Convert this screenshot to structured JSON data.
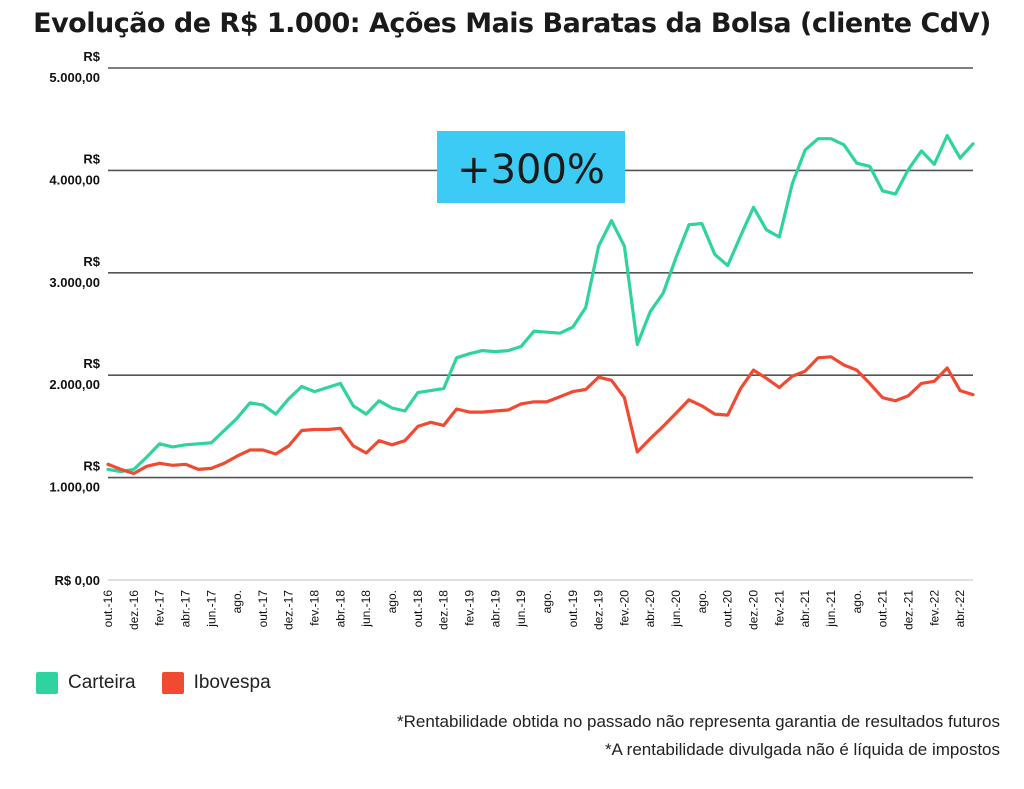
{
  "chart_data": {
    "type": "line",
    "title": "Evolução de R$ 1.000: Ações Mais Baratas da Bolsa (cliente CdV)",
    "ylim": [
      0,
      5000
    ],
    "y_ticks": [
      {
        "value": 0,
        "label": "R$ 0,00"
      },
      {
        "value": 1000,
        "label": "R$\n1.000,00"
      },
      {
        "value": 2000,
        "label": "R$\n2.000,00"
      },
      {
        "value": 3000,
        "label": "R$\n3.000,00"
      },
      {
        "value": 4000,
        "label": "R$\n4.000,00"
      },
      {
        "value": 5000,
        "label": "R$\n5.000,00"
      }
    ],
    "x": [
      "out.-16",
      "nov.-16",
      "dez.-16",
      "jan.-17",
      "fev.-17",
      "mar.-17",
      "abr.-17",
      "mai.-17",
      "jun.-17",
      "jul.-17",
      "ago.-17",
      "set.-17",
      "out.-17",
      "nov.-17",
      "dez.-17",
      "jan.-18",
      "fev.-18",
      "mar.-18",
      "abr.-18",
      "mai.-18",
      "jun.-18",
      "jul.-18",
      "ago.-18",
      "set.-18",
      "out.-18",
      "nov.-18",
      "dez.-18",
      "jan.-19",
      "fev.-19",
      "mar.-19",
      "abr.-19",
      "mai.-19",
      "jun.-19",
      "jul.-19",
      "ago.-19",
      "set.-19",
      "out.-19",
      "nov.-19",
      "dez.-19",
      "jan.-20",
      "fev.-20",
      "mar.-20",
      "abr.-20",
      "mai.-20",
      "jun.-20",
      "jul.-20",
      "ago.-20",
      "set.-20",
      "out.-20",
      "nov.-20",
      "dez.-20",
      "jan.-21",
      "fev.-21",
      "mar.-21",
      "abr.-21",
      "mai.-21",
      "jun.-21",
      "jul.-21",
      "ago.-21",
      "set.-21",
      "out.-21",
      "nov.-21",
      "dez.-21",
      "jan.-22",
      "fev.-22",
      "mar.-22",
      "abr.-22",
      "mai.-22"
    ],
    "x_tick_labels": [
      "out.-16",
      "dez.-16",
      "fev.-17",
      "abr.-17",
      "jun.-17",
      "ago.",
      "out.-17",
      "dez.-17",
      "fev.-18",
      "abr.-18",
      "jun.-18",
      "ago.",
      "out.-18",
      "dez.-18",
      "fev.-19",
      "abr.-19",
      "jun.-19",
      "ago.",
      "out.-19",
      "dez.-19",
      "fev.-20",
      "abr.-20",
      "jun.-20",
      "ago.",
      "out.-20",
      "dez.-20",
      "fev.-21",
      "abr.-21",
      "jun.-21",
      "ago.",
      "out.-21",
      "dez.-21",
      "fev.-22",
      "abr.-22"
    ],
    "series": [
      {
        "name": "Carteira",
        "color": "#2ed3a0",
        "values": [
          1080,
          1060,
          1080,
          1200,
          1330,
          1300,
          1320,
          1330,
          1340,
          1460,
          1580,
          1730,
          1710,
          1620,
          1770,
          1890,
          1840,
          1880,
          1920,
          1700,
          1620,
          1750,
          1680,
          1650,
          1830,
          1850,
          1870,
          2170,
          2210,
          2240,
          2230,
          2240,
          2280,
          2430,
          2420,
          2410,
          2470,
          2660,
          3260,
          3510,
          3260,
          2300,
          2620,
          2800,
          3150,
          3470,
          3480,
          3180,
          3070,
          3360,
          3640,
          3420,
          3350,
          3870,
          4200,
          4310,
          4310,
          4250,
          4070,
          4040,
          3800,
          3770,
          4010,
          4190,
          4060,
          4340,
          4120,
          4260
        ]
      },
      {
        "name": "Ibovespa",
        "color": "#f04a32",
        "values": [
          1130,
          1080,
          1040,
          1110,
          1140,
          1120,
          1130,
          1080,
          1090,
          1140,
          1210,
          1270,
          1270,
          1230,
          1310,
          1460,
          1470,
          1470,
          1480,
          1310,
          1240,
          1360,
          1320,
          1360,
          1500,
          1540,
          1510,
          1670,
          1640,
          1640,
          1650,
          1660,
          1720,
          1740,
          1740,
          1790,
          1840,
          1860,
          1980,
          1950,
          1780,
          1250,
          1380,
          1500,
          1630,
          1760,
          1700,
          1620,
          1610,
          1870,
          2050,
          1970,
          1880,
          1990,
          2040,
          2170,
          2180,
          2100,
          2050,
          1920,
          1780,
          1750,
          1800,
          1920,
          1940,
          2070,
          1850,
          1810
        ]
      }
    ],
    "annotation": "+300%",
    "annotation_color": "#3ccbf4"
  },
  "legend": [
    {
      "label": "Carteira",
      "color": "#2ed3a0"
    },
    {
      "label": "Ibovespa",
      "color": "#f04a32"
    }
  ],
  "notes": [
    "*Rentabilidade obtida no passado não representa garantia de resultados futuros",
    "*A rentabilidade divulgada não é líquida de impostos"
  ]
}
